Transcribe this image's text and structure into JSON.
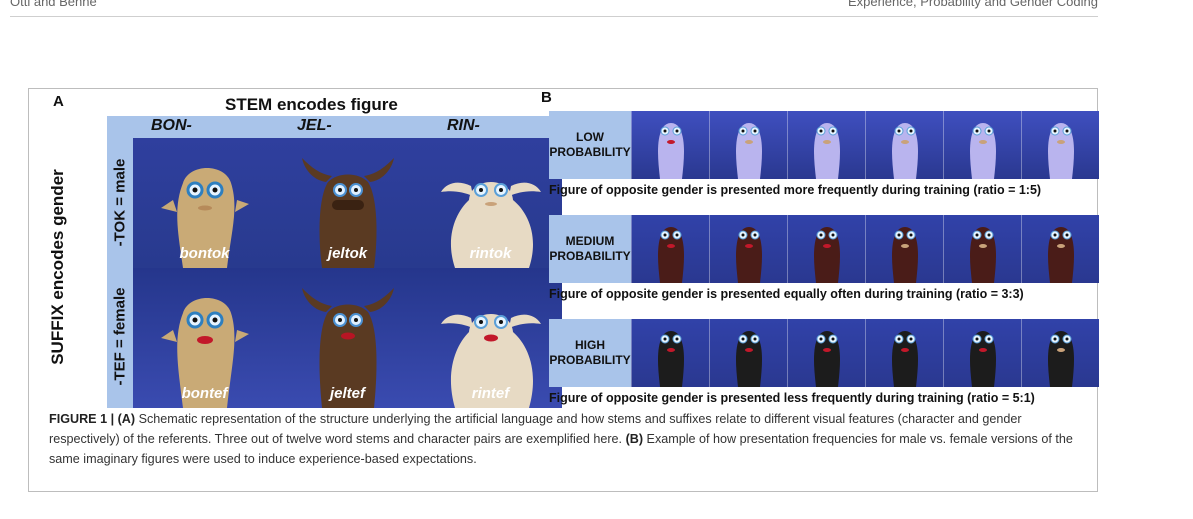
{
  "running_head": {
    "left": "Öttl and Behne",
    "right": "Experience, Probability and Gender Coding"
  },
  "panel_a": {
    "letter": "A",
    "title": "STEM encodes figure",
    "stems": [
      "BON-",
      "JEL-",
      "RIN-"
    ],
    "axis_label": "SUFFIX encodes gender",
    "rows": [
      {
        "label": "-TOK = male",
        "names": [
          "bontok",
          "jeltok",
          "rintok"
        ]
      },
      {
        "label": "-TEF = female",
        "names": [
          "bontef",
          "jeltef",
          "rintef"
        ]
      }
    ],
    "colors": {
      "header": "#a9c4ea",
      "background": "#2f3f9e"
    }
  },
  "panel_b": {
    "letter": "B",
    "rows": [
      {
        "label_line1": "LOW",
        "label_line2": "PROBABILITY",
        "caption": "Figure of opposite gender is presented more frequently during training (ratio = 1:5)",
        "figure_color": "#b9b4ee",
        "bg": "#3f4fbf"
      },
      {
        "label_line1": "MEDIUM",
        "label_line2": "PROBABILITY",
        "caption": "Figure of opposite gender is presented equally often during training (ratio = 3:3)",
        "figure_color": "#4a1c18",
        "bg": "#3142a9"
      },
      {
        "label_line1": "HIGH",
        "label_line2": "PROBABILITY",
        "caption": "Figure of opposite gender is presented less frequently during training (ratio = 5:1)",
        "figure_color": "#1c1c1c",
        "bg": "#3142a9"
      }
    ]
  },
  "caption": {
    "label": "FIGURE 1 |",
    "part_a_label": "(A)",
    "part_a_text": " Schematic representation of the structure underlying the artificial language and how stems and suffixes relate to different visual features (character and gender respectively) of the referents. Three out of twelve word stems and character pairs are exemplified here. ",
    "part_b_label": "(B)",
    "part_b_text": " Example of how presentation frequencies for male vs. female versions of the same imaginary figures were used to induce experience-based expectations."
  }
}
